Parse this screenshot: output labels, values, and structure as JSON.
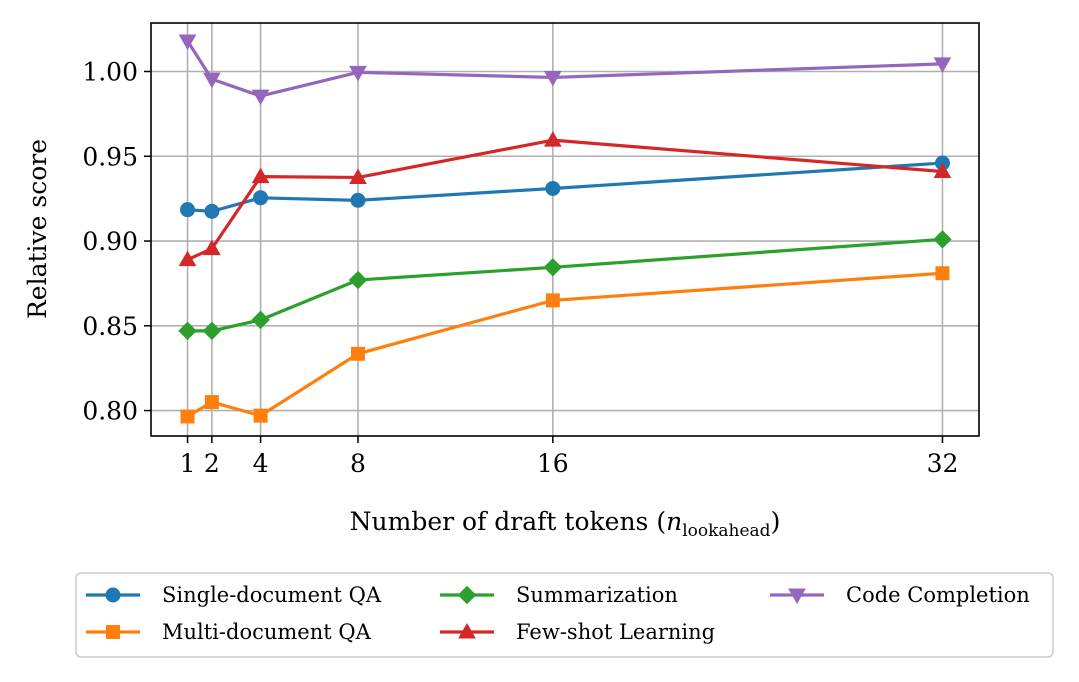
{
  "chart_data": {
    "type": "line",
    "x": [
      1,
      2,
      4,
      8,
      16,
      32
    ],
    "xlabel_main": "Number of draft tokens (",
    "xlabel_var": "n",
    "xlabel_sub": "lookahead",
    "xlabel_close": ")",
    "ylabel": "Relative score",
    "xlim": [
      -0.5,
      33.5
    ],
    "ylim": [
      0.785,
      1.0286
    ],
    "x_ticks": [
      "1",
      "2",
      "4",
      "8",
      "16",
      "32"
    ],
    "y_ticks": [
      "0.80",
      "0.85",
      "0.90",
      "0.95",
      "1.00"
    ],
    "y_tick_values": [
      0.8,
      0.85,
      0.9,
      0.95,
      1.0
    ],
    "grid": true,
    "legend_position": "bottom",
    "series": [
      {
        "name": "Single-document QA",
        "color": "#1f77b4",
        "marker": "circle",
        "values": [
          0.9185,
          0.9175,
          0.9255,
          0.924,
          0.931,
          0.946
        ]
      },
      {
        "name": "Multi-document QA",
        "color": "#ff7f0e",
        "marker": "square",
        "values": [
          0.7965,
          0.805,
          0.797,
          0.8335,
          0.865,
          0.881
        ]
      },
      {
        "name": "Summarization",
        "color": "#2ca02c",
        "marker": "diamond",
        "values": [
          0.847,
          0.847,
          0.8535,
          0.877,
          0.8845,
          0.901
        ]
      },
      {
        "name": "Few-shot Learning",
        "color": "#d62728",
        "marker": "triangle-up",
        "values": [
          0.889,
          0.8955,
          0.938,
          0.9375,
          0.9595,
          0.941
        ]
      },
      {
        "name": "Code Completion",
        "color": "#9467bd",
        "marker": "triangle-down",
        "values": [
          1.018,
          0.9955,
          0.9855,
          0.9995,
          0.9965,
          1.0045
        ]
      }
    ]
  }
}
